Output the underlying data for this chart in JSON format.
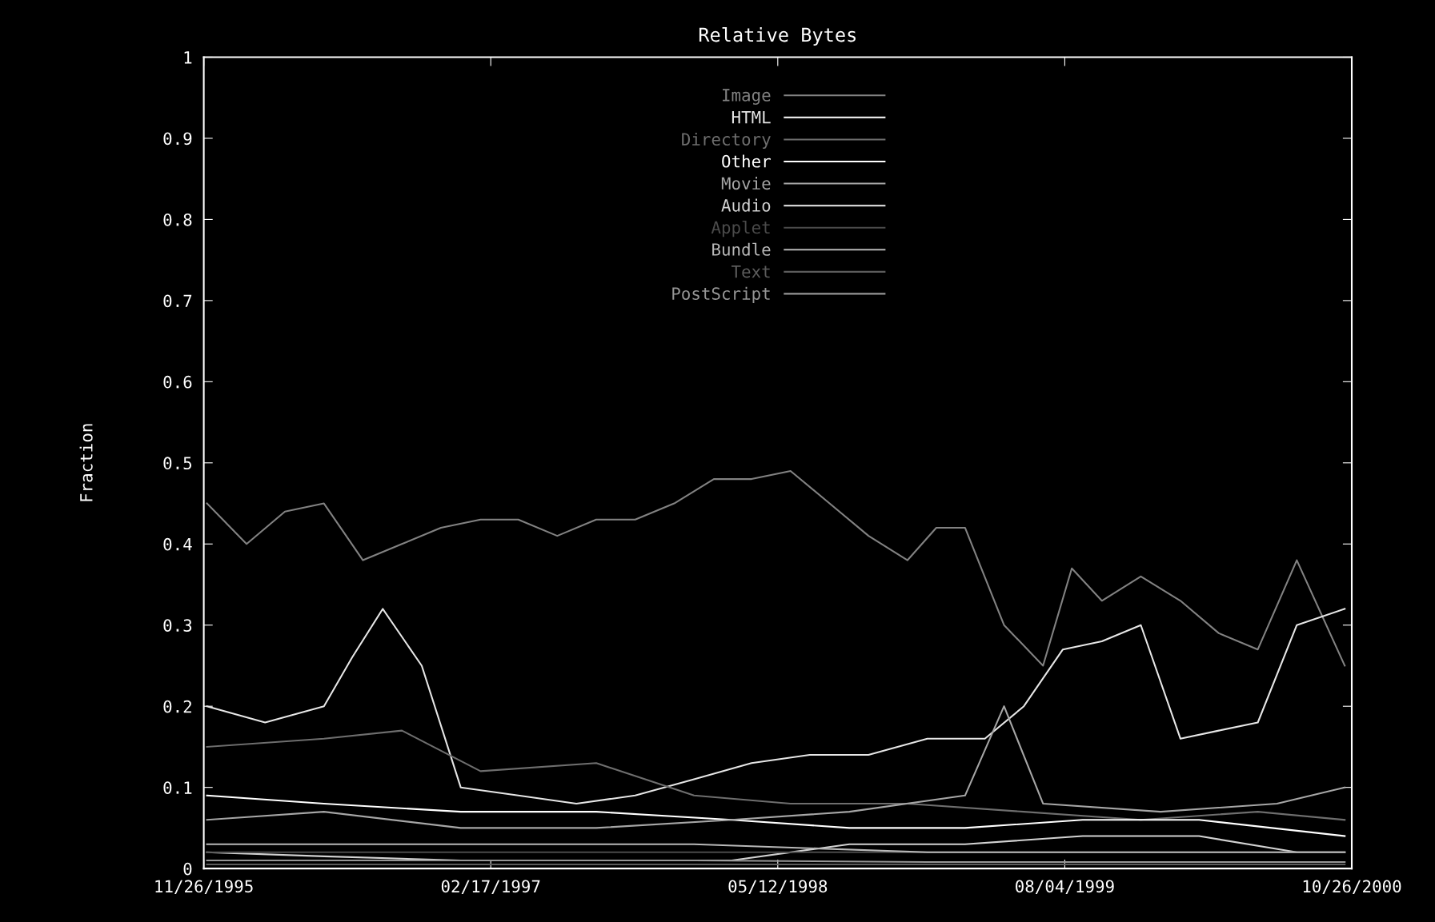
{
  "chart_data": {
    "type": "line",
    "title": "Relative Bytes",
    "ylabel": "Fraction",
    "xlim": [
      "1995-11-26",
      "2000-10-26"
    ],
    "xticks": [
      {
        "value": "1995-11-26",
        "label": "11/26/1995"
      },
      {
        "value": "1997-02-17",
        "label": "02/17/1997"
      },
      {
        "value": "1998-05-12",
        "label": "05/12/1998"
      },
      {
        "value": "1999-08-04",
        "label": "08/04/1999"
      },
      {
        "value": "2000-10-26",
        "label": "10/26/2000"
      }
    ],
    "ylim": [
      0,
      1
    ],
    "yticks": [
      0,
      0.1,
      0.2,
      0.3,
      0.4,
      0.5,
      0.6,
      0.7,
      0.8,
      0.9,
      1
    ],
    "grid": false,
    "legend": "top",
    "marker": "none",
    "line_style": "solid",
    "series": [
      {
        "name": "Image",
        "color": "#828282",
        "x": [
          "1995-12-01",
          "1996-02-01",
          "1996-04-01",
          "1996-06-01",
          "1996-08-01",
          "1996-10-01",
          "1996-12-01",
          "1997-02-01",
          "1997-04-01",
          "1997-06-01",
          "1997-08-01",
          "1997-10-01",
          "1997-12-01",
          "1998-02-01",
          "1998-04-01",
          "1998-06-01",
          "1998-08-01",
          "1998-10-01",
          "1998-12-01",
          "1999-01-15",
          "1999-03-01",
          "1999-05-01",
          "1999-07-01",
          "1999-08-15",
          "1999-10-01",
          "1999-12-01",
          "2000-02-01",
          "2000-04-01",
          "2000-06-01",
          "2000-08-01",
          "2000-10-15"
        ],
        "values": [
          0.45,
          0.4,
          0.44,
          0.45,
          0.38,
          0.4,
          0.42,
          0.43,
          0.43,
          0.41,
          0.43,
          0.43,
          0.45,
          0.48,
          0.48,
          0.49,
          0.45,
          0.41,
          0.38,
          0.42,
          0.42,
          0.3,
          0.25,
          0.37,
          0.33,
          0.36,
          0.33,
          0.29,
          0.27,
          0.38,
          0.25
        ]
      },
      {
        "name": "HTML",
        "color": "#e6e6e6",
        "x": [
          "1995-12-01",
          "1996-03-01",
          "1996-06-01",
          "1996-07-15",
          "1996-09-01",
          "1996-11-01",
          "1997-01-01",
          "1997-04-01",
          "1997-07-01",
          "1997-10-01",
          "1998-01-01",
          "1998-04-01",
          "1998-07-01",
          "1998-10-01",
          "1999-01-01",
          "1999-04-01",
          "1999-06-01",
          "1999-08-01",
          "1999-10-01",
          "1999-12-01",
          "2000-02-01",
          "2000-04-01",
          "2000-06-01",
          "2000-08-01",
          "2000-10-15"
        ],
        "values": [
          0.2,
          0.18,
          0.2,
          0.26,
          0.32,
          0.25,
          0.1,
          0.09,
          0.08,
          0.09,
          0.11,
          0.13,
          0.14,
          0.14,
          0.16,
          0.16,
          0.2,
          0.27,
          0.28,
          0.3,
          0.16,
          0.17,
          0.18,
          0.3,
          0.32
        ]
      },
      {
        "name": "Directory",
        "color": "#6e6e6e",
        "x": [
          "1995-12-01",
          "1996-06-01",
          "1996-10-01",
          "1997-02-01",
          "1997-08-01",
          "1998-01-01",
          "1998-06-01",
          "1998-12-01",
          "1999-06-01",
          "1999-12-01",
          "2000-06-01",
          "2000-10-15"
        ],
        "values": [
          0.15,
          0.16,
          0.17,
          0.12,
          0.13,
          0.09,
          0.08,
          0.08,
          0.07,
          0.06,
          0.07,
          0.06
        ]
      },
      {
        "name": "Other",
        "color": "#ffffff",
        "x": [
          "1995-12-01",
          "1996-06-01",
          "1997-01-01",
          "1997-08-01",
          "1998-03-01",
          "1998-09-01",
          "1999-03-01",
          "1999-09-01",
          "2000-03-01",
          "2000-10-15"
        ],
        "values": [
          0.09,
          0.08,
          0.07,
          0.07,
          0.06,
          0.05,
          0.05,
          0.06,
          0.06,
          0.04
        ]
      },
      {
        "name": "Movie",
        "color": "#a6a6a6",
        "x": [
          "1995-12-01",
          "1996-06-01",
          "1997-01-01",
          "1997-08-01",
          "1998-03-01",
          "1998-09-01",
          "1999-03-01",
          "1999-05-01",
          "1999-07-01",
          "2000-01-01",
          "2000-07-01",
          "2000-10-15"
        ],
        "values": [
          0.06,
          0.07,
          0.05,
          0.05,
          0.06,
          0.07,
          0.09,
          0.2,
          0.08,
          0.07,
          0.08,
          0.1
        ]
      },
      {
        "name": "Audio",
        "color": "#d2d2d2",
        "x": [
          "1995-12-01",
          "1996-06-01",
          "1997-01-01",
          "1997-08-01",
          "1998-03-01",
          "1998-09-01",
          "1999-03-01",
          "1999-09-01",
          "2000-03-01",
          "2000-08-01",
          "2000-10-15"
        ],
        "values": [
          0.02,
          0.015,
          0.01,
          0.01,
          0.01,
          0.03,
          0.03,
          0.04,
          0.04,
          0.02,
          0.02
        ]
      },
      {
        "name": "Applet",
        "color": "#4a4a4a",
        "x": [
          "1995-12-01",
          "1997-01-01",
          "1998-01-01",
          "1999-01-01",
          "2000-01-01",
          "2000-10-15"
        ],
        "values": [
          0.02,
          0.02,
          0.02,
          0.02,
          0.02,
          0.02
        ]
      },
      {
        "name": "Bundle",
        "color": "#b8b8b8",
        "x": [
          "1995-12-01",
          "1997-01-01",
          "1998-01-01",
          "1999-01-01",
          "2000-01-01",
          "2000-10-15"
        ],
        "values": [
          0.03,
          0.03,
          0.03,
          0.02,
          0.02,
          0.02
        ]
      },
      {
        "name": "Text",
        "color": "#5c5c5c",
        "x": [
          "1995-12-01",
          "1997-01-01",
          "1998-01-01",
          "1999-01-01",
          "2000-01-01",
          "2000-10-15"
        ],
        "values": [
          0.005,
          0.005,
          0.005,
          0.005,
          0.005,
          0.005
        ]
      },
      {
        "name": "PostScript",
        "color": "#969696",
        "x": [
          "1995-12-01",
          "1997-01-01",
          "1998-01-01",
          "1999-01-01",
          "2000-01-01",
          "2000-10-15"
        ],
        "values": [
          0.01,
          0.01,
          0.01,
          0.008,
          0.008,
          0.008
        ]
      }
    ]
  }
}
